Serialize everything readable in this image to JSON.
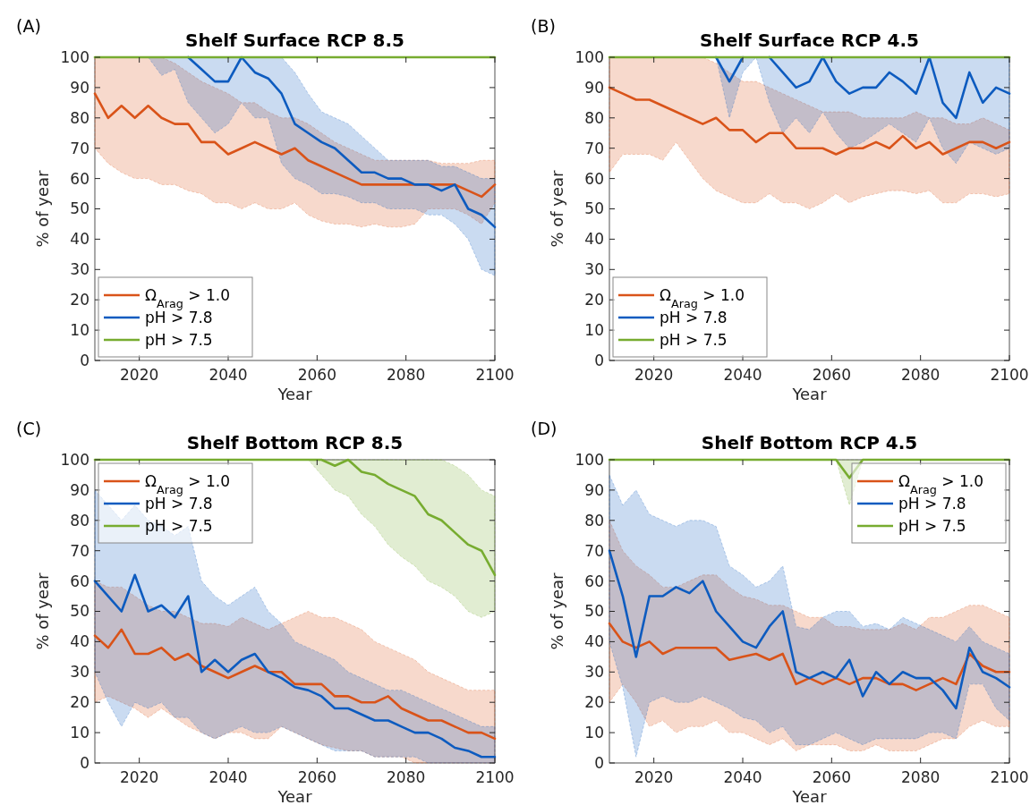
{
  "chart_data": [
    {
      "type": "line",
      "title": "Shelf Surface RCP 8.5",
      "xlabel": "Year",
      "ylabel": "% of year",
      "annotations": [
        "(A)"
      ],
      "legend": "bottom left",
      "xlim": [
        2010,
        2100
      ],
      "xticks": [
        2020,
        2040,
        2060,
        2080,
        2100
      ],
      "ylim": [
        0,
        100
      ],
      "yticks": [
        0,
        10,
        20,
        30,
        40,
        50,
        60,
        70,
        80,
        90,
        100
      ],
      "line_style": "solid",
      "x": [
        2010,
        2013,
        2016,
        2019,
        2022,
        2025,
        2028,
        2031,
        2034,
        2037,
        2040,
        2043,
        2046,
        2049,
        2052,
        2055,
        2058,
        2061,
        2064,
        2067,
        2070,
        2073,
        2076,
        2079,
        2082,
        2085,
        2088,
        2091,
        2094,
        2097,
        2100
      ],
      "series": [
        {
          "name": "Ω$_{Arag}$ > 1.0",
          "color": "#d95319",
          "values": [
            88,
            80,
            84,
            80,
            84,
            80,
            78,
            78,
            72,
            72,
            68,
            70,
            72,
            70,
            68,
            70,
            66,
            64,
            62,
            60,
            58,
            58,
            58,
            58,
            58,
            58,
            58,
            58,
            56,
            54,
            58
          ],
          "lower": [
            70,
            65,
            62,
            60,
            60,
            58,
            58,
            56,
            55,
            52,
            52,
            50,
            52,
            50,
            50,
            52,
            48,
            46,
            45,
            45,
            44,
            45,
            44,
            44,
            45,
            50,
            50,
            50,
            48,
            45,
            52
          ],
          "upper": [
            100,
            100,
            100,
            100,
            100,
            100,
            98,
            95,
            92,
            90,
            88,
            85,
            85,
            82,
            80,
            80,
            78,
            75,
            72,
            70,
            68,
            66,
            66,
            66,
            66,
            66,
            65,
            65,
            65,
            66,
            66
          ]
        },
        {
          "name": "pH > 7.8",
          "color": "#0d5bbf",
          "values": [
            null,
            null,
            null,
            null,
            null,
            null,
            null,
            100,
            96,
            92,
            92,
            100,
            95,
            93,
            88,
            78,
            75,
            72,
            70,
            66,
            62,
            62,
            60,
            60,
            58,
            58,
            56,
            58,
            50,
            48,
            44
          ],
          "lower": [
            100,
            100,
            100,
            100,
            100,
            94,
            96,
            85,
            80,
            75,
            78,
            85,
            80,
            80,
            65,
            60,
            58,
            55,
            55,
            54,
            52,
            52,
            50,
            50,
            50,
            48,
            48,
            45,
            40,
            30,
            28
          ],
          "upper": [
            100,
            100,
            100,
            100,
            100,
            100,
            100,
            100,
            100,
            100,
            100,
            100,
            100,
            100,
            100,
            95,
            88,
            82,
            80,
            78,
            74,
            70,
            66,
            66,
            66,
            66,
            64,
            64,
            62,
            60,
            60
          ]
        },
        {
          "name": "pH > 7.5",
          "color": "#77ac30",
          "values": [
            100,
            100,
            100,
            100,
            100,
            100,
            100,
            100,
            100,
            100,
            100,
            100,
            100,
            100,
            100,
            100,
            100,
            100,
            100,
            100,
            100,
            100,
            100,
            100,
            100,
            100,
            100,
            100,
            100,
            100,
            100
          ]
        }
      ]
    },
    {
      "type": "line",
      "title": "Shelf Surface RCP 4.5",
      "xlabel": "Year",
      "ylabel": "% of year",
      "annotations": [
        "(B)"
      ],
      "legend": "bottom left",
      "xlim": [
        2010,
        2100
      ],
      "xticks": [
        2020,
        2040,
        2060,
        2080,
        2100
      ],
      "ylim": [
        0,
        100
      ],
      "yticks": [
        0,
        10,
        20,
        30,
        40,
        50,
        60,
        70,
        80,
        90,
        100
      ],
      "line_style": "solid",
      "x": [
        2010,
        2013,
        2016,
        2019,
        2022,
        2025,
        2028,
        2031,
        2034,
        2037,
        2040,
        2043,
        2046,
        2049,
        2052,
        2055,
        2058,
        2061,
        2064,
        2067,
        2070,
        2073,
        2076,
        2079,
        2082,
        2085,
        2088,
        2091,
        2094,
        2097,
        2100
      ],
      "series": [
        {
          "name": "Ω$_{Arag}$ > 1.0",
          "color": "#d95319",
          "values": [
            90,
            88,
            86,
            86,
            84,
            82,
            80,
            78,
            80,
            76,
            76,
            72,
            75,
            75,
            70,
            70,
            70,
            68,
            70,
            70,
            72,
            70,
            74,
            70,
            72,
            68,
            70,
            72,
            72,
            70,
            72
          ],
          "lower": [
            62,
            68,
            68,
            68,
            66,
            72,
            66,
            60,
            56,
            54,
            52,
            52,
            55,
            52,
            52,
            50,
            52,
            55,
            52,
            54,
            55,
            56,
            56,
            55,
            56,
            52,
            52,
            55,
            55,
            54,
            55
          ],
          "upper": [
            100,
            100,
            100,
            100,
            100,
            100,
            100,
            100,
            98,
            95,
            92,
            92,
            90,
            88,
            86,
            84,
            82,
            82,
            82,
            80,
            80,
            80,
            80,
            82,
            80,
            80,
            78,
            78,
            80,
            78,
            76
          ]
        },
        {
          "name": "pH > 7.8",
          "color": "#0d5bbf",
          "values": [
            null,
            null,
            null,
            null,
            null,
            null,
            null,
            null,
            100,
            92,
            100,
            null,
            100,
            95,
            90,
            92,
            100,
            92,
            88,
            90,
            90,
            95,
            92,
            88,
            100,
            85,
            80,
            95,
            85,
            90,
            88
          ],
          "lower": [
            100,
            100,
            100,
            100,
            100,
            100,
            100,
            100,
            100,
            80,
            95,
            100,
            85,
            75,
            80,
            75,
            82,
            75,
            70,
            72,
            75,
            78,
            75,
            72,
            80,
            70,
            65,
            72,
            70,
            68,
            70
          ],
          "upper": [
            100,
            100,
            100,
            100,
            100,
            100,
            100,
            100,
            100,
            100,
            100,
            100,
            100,
            100,
            100,
            100,
            100,
            100,
            100,
            100,
            100,
            100,
            100,
            100,
            100,
            100,
            100,
            100,
            100,
            100,
            100
          ]
        },
        {
          "name": "pH > 7.5",
          "color": "#77ac30",
          "values": [
            100,
            100,
            100,
            100,
            100,
            100,
            100,
            100,
            100,
            100,
            100,
            100,
            100,
            100,
            100,
            100,
            100,
            100,
            100,
            100,
            100,
            100,
            100,
            100,
            100,
            100,
            100,
            100,
            100,
            100,
            100
          ]
        }
      ]
    },
    {
      "type": "line",
      "title": "Shelf Bottom RCP 8.5",
      "xlabel": "Year",
      "ylabel": "% of year",
      "annotations": [
        "(C)"
      ],
      "legend": "top left",
      "xlim": [
        2010,
        2100
      ],
      "xticks": [
        2020,
        2040,
        2060,
        2080,
        2100
      ],
      "ylim": [
        0,
        100
      ],
      "yticks": [
        0,
        10,
        20,
        30,
        40,
        50,
        60,
        70,
        80,
        90,
        100
      ],
      "line_style": "solid",
      "x": [
        2010,
        2013,
        2016,
        2019,
        2022,
        2025,
        2028,
        2031,
        2034,
        2037,
        2040,
        2043,
        2046,
        2049,
        2052,
        2055,
        2058,
        2061,
        2064,
        2067,
        2070,
        2073,
        2076,
        2079,
        2082,
        2085,
        2088,
        2091,
        2094,
        2097,
        2100
      ],
      "series": [
        {
          "name": "Ω$_{Arag}$ > 1.0",
          "color": "#d95319",
          "values": [
            42,
            38,
            44,
            36,
            36,
            38,
            34,
            36,
            32,
            30,
            28,
            30,
            32,
            30,
            30,
            26,
            26,
            26,
            22,
            22,
            20,
            20,
            22,
            18,
            16,
            14,
            14,
            12,
            10,
            10,
            8
          ],
          "lower": [
            20,
            22,
            20,
            18,
            15,
            18,
            15,
            12,
            10,
            8,
            10,
            10,
            8,
            8,
            12,
            10,
            8,
            6,
            5,
            4,
            4,
            2,
            2,
            2,
            0,
            0,
            0,
            0,
            0,
            0,
            0
          ],
          "upper": [
            60,
            58,
            58,
            55,
            52,
            50,
            50,
            48,
            46,
            46,
            45,
            48,
            46,
            44,
            46,
            48,
            50,
            48,
            48,
            46,
            44,
            40,
            38,
            36,
            34,
            30,
            28,
            26,
            24,
            24,
            24
          ]
        },
        {
          "name": "pH > 7.8",
          "color": "#0d5bbf",
          "values": [
            60,
            55,
            50,
            62,
            50,
            52,
            48,
            55,
            30,
            34,
            30,
            34,
            36,
            30,
            28,
            25,
            24,
            22,
            18,
            18,
            16,
            14,
            14,
            12,
            10,
            10,
            8,
            5,
            4,
            2,
            2
          ],
          "lower": [
            30,
            20,
            12,
            20,
            18,
            20,
            15,
            15,
            10,
            8,
            10,
            12,
            10,
            10,
            12,
            10,
            8,
            6,
            4,
            4,
            4,
            2,
            2,
            2,
            2,
            0,
            0,
            0,
            0,
            0,
            0
          ],
          "upper": [
            90,
            85,
            80,
            85,
            80,
            78,
            75,
            78,
            60,
            55,
            52,
            55,
            58,
            50,
            46,
            40,
            38,
            36,
            34,
            30,
            28,
            26,
            24,
            24,
            22,
            20,
            18,
            16,
            14,
            12,
            12
          ]
        },
        {
          "name": "pH > 7.5",
          "color": "#77ac30",
          "values": [
            100,
            100,
            100,
            100,
            100,
            100,
            100,
            100,
            100,
            100,
            100,
            100,
            100,
            100,
            100,
            100,
            100,
            100,
            98,
            100,
            96,
            95,
            92,
            90,
            88,
            82,
            80,
            76,
            72,
            70,
            62
          ],
          "lower": [
            100,
            100,
            100,
            100,
            100,
            100,
            100,
            100,
            100,
            100,
            100,
            100,
            100,
            100,
            100,
            100,
            100,
            95,
            90,
            88,
            82,
            78,
            72,
            68,
            65,
            60,
            58,
            55,
            50,
            48,
            50
          ],
          "upper": [
            100,
            100,
            100,
            100,
            100,
            100,
            100,
            100,
            100,
            100,
            100,
            100,
            100,
            100,
            100,
            100,
            100,
            100,
            100,
            100,
            100,
            100,
            100,
            100,
            100,
            100,
            100,
            98,
            95,
            90,
            88
          ]
        }
      ]
    },
    {
      "type": "line",
      "title": "Shelf Bottom RCP 4.5",
      "xlabel": "Year",
      "ylabel": "% of year",
      "annotations": [
        "(D)"
      ],
      "legend": "top right",
      "xlim": [
        2010,
        2100
      ],
      "xticks": [
        2020,
        2040,
        2060,
        2080,
        2100
      ],
      "ylim": [
        0,
        100
      ],
      "yticks": [
        0,
        10,
        20,
        30,
        40,
        50,
        60,
        70,
        80,
        90,
        100
      ],
      "line_style": "solid",
      "x": [
        2010,
        2013,
        2016,
        2019,
        2022,
        2025,
        2028,
        2031,
        2034,
        2037,
        2040,
        2043,
        2046,
        2049,
        2052,
        2055,
        2058,
        2061,
        2064,
        2067,
        2070,
        2073,
        2076,
        2079,
        2082,
        2085,
        2088,
        2091,
        2094,
        2097,
        2100
      ],
      "series": [
        {
          "name": "Ω$_{Arag}$ > 1.0",
          "color": "#d95319",
          "values": [
            46,
            40,
            38,
            40,
            36,
            38,
            38,
            38,
            38,
            34,
            35,
            36,
            34,
            36,
            26,
            28,
            26,
            28,
            26,
            28,
            28,
            26,
            26,
            24,
            26,
            28,
            26,
            36,
            32,
            30,
            30
          ],
          "lower": [
            20,
            26,
            20,
            12,
            14,
            10,
            12,
            12,
            14,
            10,
            10,
            8,
            6,
            8,
            4,
            6,
            6,
            6,
            4,
            4,
            6,
            4,
            4,
            4,
            6,
            8,
            8,
            12,
            14,
            12,
            12
          ],
          "upper": [
            80,
            70,
            65,
            62,
            58,
            58,
            60,
            62,
            62,
            58,
            55,
            54,
            52,
            52,
            50,
            48,
            48,
            45,
            45,
            44,
            44,
            44,
            46,
            44,
            48,
            48,
            50,
            52,
            52,
            50,
            48
          ]
        },
        {
          "name": "pH > 7.8",
          "color": "#0d5bbf",
          "values": [
            70,
            55,
            35,
            55,
            55,
            58,
            56,
            60,
            50,
            45,
            40,
            38,
            45,
            50,
            30,
            28,
            30,
            28,
            34,
            22,
            30,
            26,
            30,
            28,
            28,
            24,
            18,
            38,
            30,
            28,
            25
          ],
          "lower": [
            40,
            25,
            2,
            20,
            22,
            20,
            20,
            22,
            20,
            18,
            15,
            14,
            10,
            12,
            6,
            6,
            8,
            10,
            8,
            6,
            8,
            8,
            8,
            8,
            10,
            10,
            8,
            26,
            26,
            18,
            14
          ],
          "upper": [
            95,
            85,
            90,
            82,
            80,
            78,
            80,
            80,
            78,
            65,
            62,
            58,
            60,
            65,
            45,
            44,
            48,
            50,
            50,
            45,
            46,
            44,
            48,
            46,
            44,
            42,
            40,
            45,
            40,
            38,
            36
          ]
        },
        {
          "name": "pH > 7.5",
          "color": "#77ac30",
          "values": [
            100,
            100,
            100,
            100,
            100,
            100,
            100,
            100,
            100,
            100,
            100,
            100,
            100,
            100,
            100,
            100,
            100,
            100,
            94,
            100,
            100,
            100,
            100,
            100,
            100,
            100,
            100,
            100,
            100,
            100,
            100
          ],
          "lower": [
            100,
            100,
            100,
            100,
            100,
            100,
            100,
            100,
            100,
            100,
            100,
            100,
            100,
            100,
            100,
            100,
            100,
            100,
            85,
            100,
            100,
            100,
            100,
            100,
            100,
            100,
            100,
            100,
            100,
            100,
            100
          ],
          "upper": [
            100,
            100,
            100,
            100,
            100,
            100,
            100,
            100,
            100,
            100,
            100,
            100,
            100,
            100,
            100,
            100,
            100,
            100,
            100,
            100,
            100,
            100,
            100,
            100,
            100,
            100,
            100,
            100,
            100,
            100,
            100
          ]
        }
      ]
    }
  ]
}
